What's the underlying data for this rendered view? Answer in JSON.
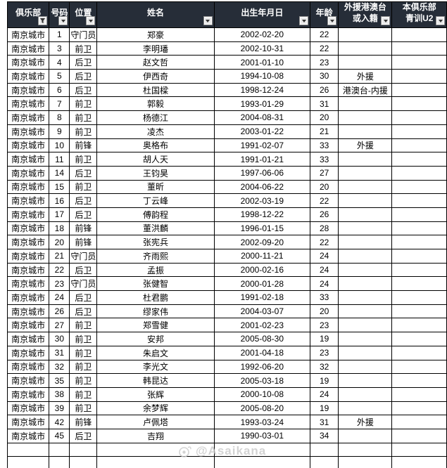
{
  "colors": {
    "header_bg": "#262d38",
    "foreign_blue": "#1b74d1",
    "hkmotw_pink": "#f08ce9"
  },
  "table": {
    "headers": [
      {
        "key": "club",
        "label": "俱乐部",
        "filter": "funnel"
      },
      {
        "key": "number",
        "label": "号码",
        "filter": "arrow"
      },
      {
        "key": "position",
        "label": "位置",
        "filter": "arrow"
      },
      {
        "key": "name",
        "label": "姓名",
        "filter": "arrow"
      },
      {
        "key": "birth",
        "label": "出生年月日",
        "filter": "arrow"
      },
      {
        "key": "age",
        "label": "年龄",
        "filter": "arrow"
      },
      {
        "key": "foreign",
        "label": "外援港澳台\n或入籍",
        "filter": "arrow"
      },
      {
        "key": "youth",
        "label": "本俱乐部\n青训U2",
        "filter": "arrow"
      }
    ],
    "rows": [
      {
        "club": "南京城市",
        "number": "1",
        "position": "守门员",
        "name": "郑豪",
        "birth": "2002-02-20",
        "age": "22",
        "status": ""
      },
      {
        "club": "南京城市",
        "number": "3",
        "position": "前卫",
        "name": "李明璠",
        "birth": "2002-10-31",
        "age": "22",
        "status": ""
      },
      {
        "club": "南京城市",
        "number": "4",
        "position": "后卫",
        "name": "赵文哲",
        "birth": "2001-01-10",
        "age": "23",
        "status": ""
      },
      {
        "club": "南京城市",
        "number": "5",
        "position": "后卫",
        "name": "伊西奇",
        "birth": "1994-10-08",
        "age": "30",
        "status": "外援"
      },
      {
        "club": "南京城市",
        "number": "6",
        "position": "后卫",
        "name": "杜国樑",
        "birth": "1998-12-24",
        "age": "26",
        "status": "港澳台-内援"
      },
      {
        "club": "南京城市",
        "number": "7",
        "position": "前卫",
        "name": "郭毅",
        "birth": "1993-01-29",
        "age": "31",
        "status": ""
      },
      {
        "club": "南京城市",
        "number": "8",
        "position": "前卫",
        "name": "杨德江",
        "birth": "2004-08-31",
        "age": "20",
        "status": ""
      },
      {
        "club": "南京城市",
        "number": "9",
        "position": "前卫",
        "name": "凌杰",
        "birth": "2003-01-22",
        "age": "21",
        "status": ""
      },
      {
        "club": "南京城市",
        "number": "10",
        "position": "前锋",
        "name": "奥格布",
        "birth": "1991-02-07",
        "age": "33",
        "status": "外援"
      },
      {
        "club": "南京城市",
        "number": "11",
        "position": "前卫",
        "name": "胡人天",
        "birth": "1991-01-21",
        "age": "33",
        "status": ""
      },
      {
        "club": "南京城市",
        "number": "14",
        "position": "后卫",
        "name": "王钧昊",
        "birth": "1997-06-06",
        "age": "27",
        "status": ""
      },
      {
        "club": "南京城市",
        "number": "15",
        "position": "前卫",
        "name": "董昕",
        "birth": "2004-06-22",
        "age": "20",
        "status": ""
      },
      {
        "club": "南京城市",
        "number": "16",
        "position": "后卫",
        "name": "丁云峰",
        "birth": "2002-03-19",
        "age": "22",
        "status": ""
      },
      {
        "club": "南京城市",
        "number": "17",
        "position": "后卫",
        "name": "傅韵程",
        "birth": "1998-12-22",
        "age": "26",
        "status": ""
      },
      {
        "club": "南京城市",
        "number": "18",
        "position": "前锋",
        "name": "董洪麟",
        "birth": "1996-01-15",
        "age": "28",
        "status": ""
      },
      {
        "club": "南京城市",
        "number": "20",
        "position": "前锋",
        "name": "张宪兵",
        "birth": "2002-09-20",
        "age": "22",
        "status": ""
      },
      {
        "club": "南京城市",
        "number": "21",
        "position": "守门员",
        "name": "齐雨熙",
        "birth": "2000-11-21",
        "age": "24",
        "status": ""
      },
      {
        "club": "南京城市",
        "number": "22",
        "position": "后卫",
        "name": "孟振",
        "birth": "2000-02-16",
        "age": "24",
        "status": ""
      },
      {
        "club": "南京城市",
        "number": "23",
        "position": "守门员",
        "name": "张健智",
        "birth": "2000-01-28",
        "age": "24",
        "status": ""
      },
      {
        "club": "南京城市",
        "number": "24",
        "position": "后卫",
        "name": "杜君鹏",
        "birth": "1991-02-18",
        "age": "33",
        "status": ""
      },
      {
        "club": "南京城市",
        "number": "26",
        "position": "后卫",
        "name": "缪家伟",
        "birth": "2004-03-07",
        "age": "20",
        "status": ""
      },
      {
        "club": "南京城市",
        "number": "27",
        "position": "前卫",
        "name": "郑雪健",
        "birth": "2001-02-23",
        "age": "23",
        "status": ""
      },
      {
        "club": "南京城市",
        "number": "30",
        "position": "前卫",
        "name": "安邦",
        "birth": "2005-08-30",
        "age": "19",
        "status": ""
      },
      {
        "club": "南京城市",
        "number": "31",
        "position": "前卫",
        "name": "朱启文",
        "birth": "2001-04-18",
        "age": "23",
        "status": ""
      },
      {
        "club": "南京城市",
        "number": "32",
        "position": "前卫",
        "name": "李光文",
        "birth": "1992-06-20",
        "age": "32",
        "status": ""
      },
      {
        "club": "南京城市",
        "number": "35",
        "position": "前卫",
        "name": "韩昆达",
        "birth": "2005-03-18",
        "age": "19",
        "status": ""
      },
      {
        "club": "南京城市",
        "number": "38",
        "position": "前卫",
        "name": "张辉",
        "birth": "2000-10-08",
        "age": "24",
        "status": ""
      },
      {
        "club": "南京城市",
        "number": "39",
        "position": "前卫",
        "name": "余梦辉",
        "birth": "2005-08-20",
        "age": "19",
        "status": ""
      },
      {
        "club": "南京城市",
        "number": "42",
        "position": "前锋",
        "name": "卢佩塔",
        "birth": "1993-03-24",
        "age": "31",
        "status": "外援"
      },
      {
        "club": "南京城市",
        "number": "45",
        "position": "后卫",
        "name": "吉翔",
        "birth": "1990-03-01",
        "age": "34",
        "status": ""
      }
    ],
    "empty_row_count": 3,
    "status_labels": {
      "foreign": "外援",
      "hkmotw": "港澳台-内援"
    }
  },
  "watermark": {
    "text": "@Asaikana"
  }
}
